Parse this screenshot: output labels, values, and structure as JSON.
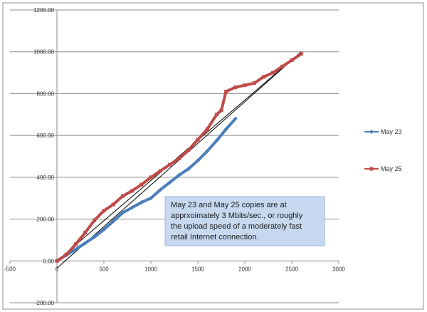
{
  "chart_data": {
    "type": "line",
    "title": "",
    "xlabel": "",
    "ylabel": "",
    "xlim": [
      -500,
      3000
    ],
    "ylim": [
      -200,
      1200
    ],
    "x_ticks": [
      -500,
      0,
      500,
      1000,
      1500,
      2000,
      2500,
      3000
    ],
    "y_ticks": [
      -200,
      0,
      200,
      400,
      600,
      800,
      1000,
      1200
    ],
    "x_tick_labels": [
      "-500",
      "0",
      "500",
      "1000",
      "1500",
      "2000",
      "2500",
      "3000"
    ],
    "y_tick_labels": [
      "-200.00",
      "0.00",
      "200.00",
      "400.00",
      "600.00",
      "800.00",
      "1000.00",
      "1200.00"
    ],
    "grid": "horizontal",
    "legend": "right",
    "series": [
      {
        "name": "May 23",
        "color": "#4a7ebb",
        "marker": "diamond",
        "x": [
          0,
          100,
          200,
          300,
          400,
          500,
          600,
          700,
          800,
          900,
          1000,
          1100,
          1200,
          1300,
          1400,
          1500,
          1600,
          1700,
          1800,
          1900
        ],
        "y": [
          0,
          28,
          55,
          85,
          115,
          150,
          190,
          230,
          255,
          280,
          300,
          340,
          375,
          410,
          440,
          480,
          525,
          575,
          630,
          680
        ]
      },
      {
        "name": "May 25",
        "color": "#be4b48",
        "marker": "square",
        "x": [
          0,
          100,
          200,
          300,
          400,
          500,
          600,
          700,
          800,
          900,
          1000,
          1100,
          1200,
          1300,
          1400,
          1500,
          1600,
          1700,
          1750,
          1800,
          1900,
          2000,
          2100,
          2200,
          2300,
          2400,
          2500,
          2600
        ],
        "y": [
          0,
          30,
          80,
          135,
          195,
          240,
          270,
          310,
          335,
          365,
          400,
          430,
          460,
          490,
          530,
          580,
          630,
          700,
          720,
          810,
          830,
          840,
          850,
          880,
          900,
          930,
          960,
          990
        ]
      }
    ],
    "trendlines": [
      {
        "x": [
          0,
          2600
        ],
        "y": [
          0,
          1000
        ],
        "color": "#000000"
      },
      {
        "x": [
          0,
          2600
        ],
        "y": [
          -35,
          1000
        ],
        "color": "#000000"
      }
    ],
    "annotations": [
      {
        "text_lines": [
          "May 23 and May 25 copies are at",
          "apprxoimately 3  Mbits/sec., or roughly",
          "the  upload speed of  a moderately fast",
          "retail Internet connection."
        ]
      }
    ]
  }
}
